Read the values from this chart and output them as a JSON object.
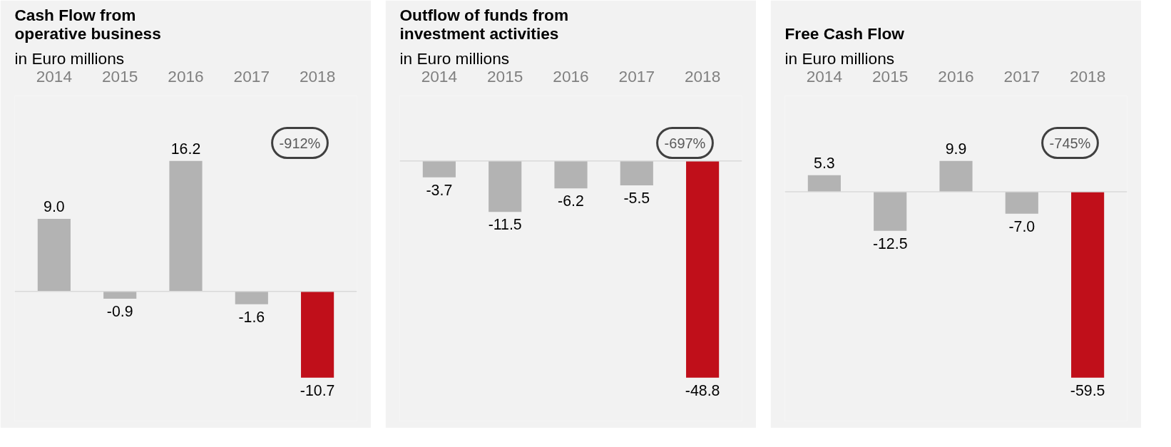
{
  "chart_data": [
    {
      "type": "bar",
      "title": "Cash Flow from\noperative business",
      "subtitle": "in Euro millions",
      "categories": [
        "2014",
        "2015",
        "2016",
        "2017",
        "2018"
      ],
      "values": [
        9.0,
        -0.9,
        16.2,
        -1.6,
        -10.7
      ],
      "value_labels": [
        "9.0",
        "-0.9",
        "16.2",
        "-1.6",
        "-10.7"
      ],
      "colors": [
        "#b3b3b3",
        "#b3b3b3",
        "#b3b3b3",
        "#b3b3b3",
        "#c00f1a"
      ],
      "grid": false,
      "annotations": [
        "-912%"
      ]
    },
    {
      "type": "bar",
      "title": "Outflow of funds from\ninvestment activities",
      "subtitle": "in Euro millions",
      "categories": [
        "2014",
        "2015",
        "2016",
        "2017",
        "2018"
      ],
      "values": [
        -3.7,
        -11.5,
        -6.2,
        -5.5,
        -48.8
      ],
      "value_labels": [
        "-3.7",
        "-11.5",
        "-6.2",
        "-5.5",
        "-48.8"
      ],
      "colors": [
        "#b3b3b3",
        "#b3b3b3",
        "#b3b3b3",
        "#b3b3b3",
        "#c00f1a"
      ],
      "grid": false,
      "annotations": [
        "-697%"
      ]
    },
    {
      "type": "bar",
      "title": "Free Cash Flow",
      "subtitle": "in Euro millions",
      "categories": [
        "2014",
        "2015",
        "2016",
        "2017",
        "2018"
      ],
      "values": [
        5.3,
        -12.5,
        9.9,
        -7.0,
        -59.5
      ],
      "value_labels": [
        "5.3",
        "-12.5",
        "9.9",
        "-7.0",
        "-59.5"
      ],
      "colors": [
        "#b3b3b3",
        "#b3b3b3",
        "#b3b3b3",
        "#b3b3b3",
        "#c00f1a"
      ],
      "grid": false,
      "annotations": [
        "-745%"
      ]
    }
  ]
}
